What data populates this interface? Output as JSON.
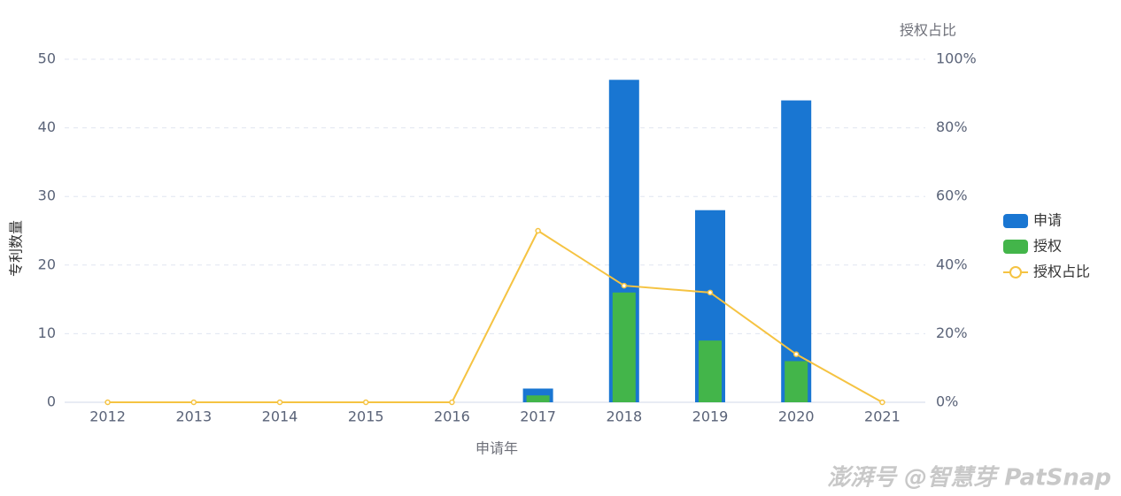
{
  "chart_data": {
    "type": "bar",
    "categories": [
      "2012",
      "2013",
      "2014",
      "2015",
      "2016",
      "2017",
      "2018",
      "2019",
      "2020",
      "2021"
    ],
    "series": [
      {
        "name": "申请",
        "type": "bar",
        "color": "#1976d2",
        "values": [
          0,
          0,
          0,
          0,
          0,
          2,
          47,
          28,
          44,
          0
        ]
      },
      {
        "name": "授权",
        "type": "bar",
        "color": "#43b54a",
        "values": [
          0,
          0,
          0,
          0,
          0,
          1,
          16,
          9,
          6,
          0
        ]
      },
      {
        "name": "授权占比",
        "type": "line",
        "axis": "y2",
        "color": "#f5c342",
        "values": [
          0,
          0,
          0,
          0,
          0,
          50,
          34,
          32,
          14,
          0
        ]
      }
    ],
    "x_label": "申请年",
    "y_label": "专利数量",
    "y2_label": "授权占比",
    "ylim": [
      0,
      50
    ],
    "yticks": [
      0,
      10,
      20,
      30,
      40,
      50
    ],
    "y2lim": [
      0,
      100
    ],
    "y2ticks": [
      {
        "value": 0,
        "label": "0%"
      },
      {
        "value": 20,
        "label": "20%"
      },
      {
        "value": 40,
        "label": "40%"
      },
      {
        "value": 60,
        "label": "60%"
      },
      {
        "value": 80,
        "label": "80%"
      },
      {
        "value": 100,
        "label": "100%"
      }
    ],
    "grid": true,
    "legend": "right",
    "watermark": "澎湃号 @智慧芽 PatSnap"
  }
}
